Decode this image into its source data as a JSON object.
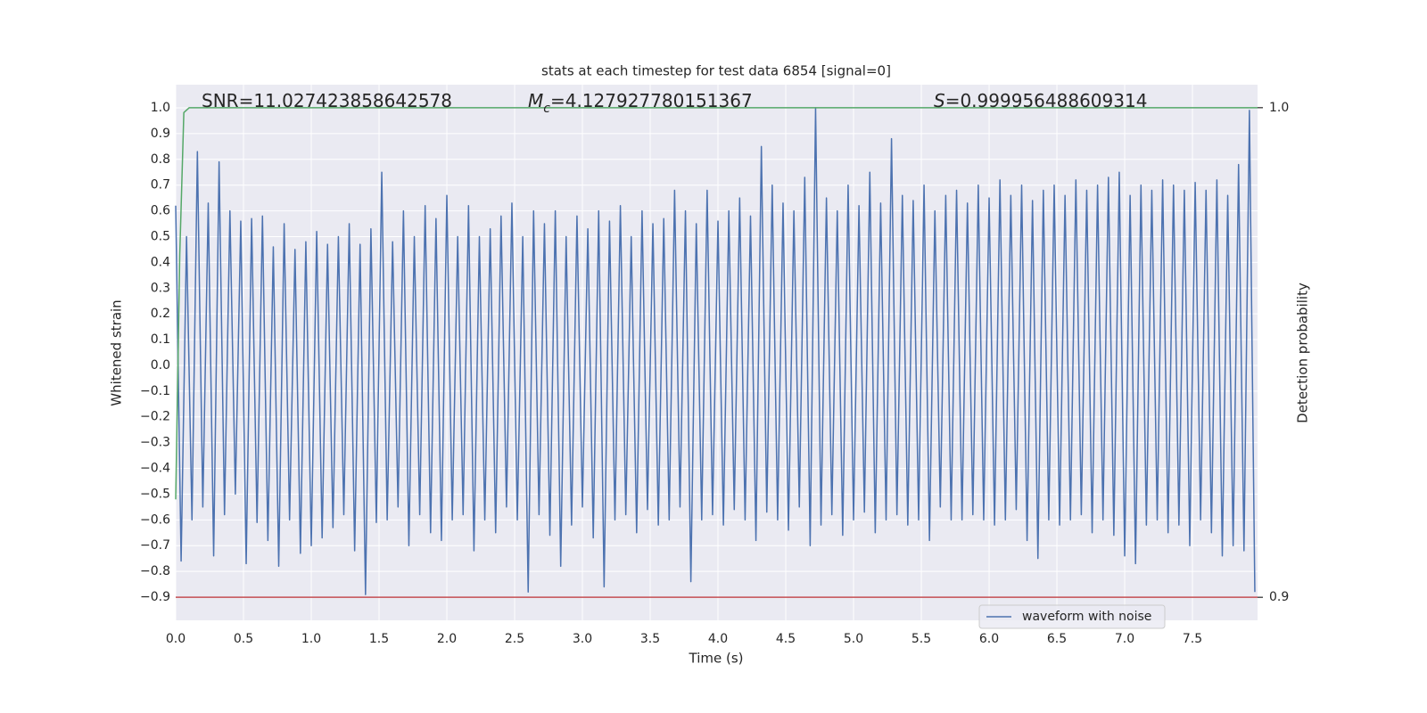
{
  "chart_data": {
    "type": "line",
    "title": "stats at each timestep for test data 6854 [signal=0]",
    "xlabel": "Time (s)",
    "ylabel": "Whitened strain",
    "y2label": "Detection probability",
    "annotations": [
      {
        "symbol": "SNR",
        "text": "=11.027423858642578",
        "italic": false
      },
      {
        "symbol": "M",
        "subscript": "c",
        "text": "=4.127927780151367",
        "italic": true
      },
      {
        "symbol": "S",
        "text": "=0.999956488609314",
        "italic": true
      }
    ],
    "xlim": [
      0,
      7.98
    ],
    "ylim": [
      -0.99,
      1.09
    ],
    "y2lim": [
      0.8953,
      1.0047
    ],
    "xticks": [
      {
        "value": 0,
        "label": "0.0"
      },
      0.5,
      {
        "value": 1,
        "label": "1.0"
      },
      1.5,
      {
        "value": 2,
        "label": "2.0"
      },
      2.5,
      {
        "value": 3,
        "label": "3.0"
      },
      3.5,
      {
        "value": 4,
        "label": "4.0"
      },
      4.5,
      {
        "value": 5,
        "label": "5.0"
      },
      5.5,
      {
        "value": 6,
        "label": "6.0"
      },
      6.5,
      {
        "value": 7,
        "label": "7.0"
      },
      7.5
    ],
    "yticks": [
      {
        "value": -0.9,
        "label": "−0.9"
      },
      {
        "value": -0.8,
        "label": "−0.8"
      },
      {
        "value": -0.7,
        "label": "−0.7"
      },
      {
        "value": -0.6,
        "label": "−0.6"
      },
      {
        "value": -0.5,
        "label": "−0.5"
      },
      {
        "value": -0.4,
        "label": "−0.4"
      },
      {
        "value": -0.3,
        "label": "−0.3"
      },
      {
        "value": -0.2,
        "label": "−0.2"
      },
      {
        "value": -0.1,
        "label": "−0.1"
      },
      {
        "value": 0,
        "label": "0.0"
      },
      0.1,
      0.2,
      0.3,
      0.4,
      0.5,
      0.6,
      0.7,
      0.8,
      0.9,
      {
        "value": 1,
        "label": "1.0"
      }
    ],
    "y2ticks": [
      0.9,
      {
        "value": 1,
        "label": "1.0"
      }
    ],
    "grid": true,
    "legend": "lower right",
    "series": [
      {
        "name": "waveform with noise",
        "color": "#4c72b0",
        "x": [
          0,
          0.04,
          0.08,
          0.12,
          0.16,
          0.2,
          0.24,
          0.28,
          0.32,
          0.36,
          0.4,
          0.44,
          0.48,
          0.52,
          0.56,
          0.6,
          0.64,
          0.68,
          0.72,
          0.76,
          0.8,
          0.84,
          0.88,
          0.92,
          0.96,
          1,
          1.04,
          1.08,
          1.12,
          1.16,
          1.2,
          1.24,
          1.28,
          1.32,
          1.36,
          1.4,
          1.44,
          1.48,
          1.52,
          1.56,
          1.6,
          1.64,
          1.68,
          1.72,
          1.76,
          1.8,
          1.84,
          1.88,
          1.92,
          1.96,
          2,
          2.04,
          2.08,
          2.12,
          2.16,
          2.2,
          2.24,
          2.28,
          2.32,
          2.36,
          2.4,
          2.44,
          2.48,
          2.52,
          2.56,
          2.6,
          2.64,
          2.68,
          2.72,
          2.76,
          2.8,
          2.84,
          2.88,
          2.92,
          2.96,
          3,
          3.04,
          3.08,
          3.12,
          3.16,
          3.2,
          3.24,
          3.28,
          3.32,
          3.36,
          3.4,
          3.44,
          3.48,
          3.52,
          3.56,
          3.6,
          3.64,
          3.68,
          3.72,
          3.76,
          3.8,
          3.84,
          3.88,
          3.92,
          3.96,
          4,
          4.04,
          4.08,
          4.12,
          4.16,
          4.2,
          4.24,
          4.28,
          4.32,
          4.36,
          4.4,
          4.44,
          4.48,
          4.52,
          4.56,
          4.6,
          4.64,
          4.68,
          4.72,
          4.76,
          4.8,
          4.84,
          4.88,
          4.92,
          4.96,
          5,
          5.04,
          5.08,
          5.12,
          5.16,
          5.2,
          5.24,
          5.28,
          5.32,
          5.36,
          5.4,
          5.44,
          5.48,
          5.52,
          5.56,
          5.6,
          5.64,
          5.68,
          5.72,
          5.76,
          5.8,
          5.84,
          5.88,
          5.92,
          5.96,
          6,
          6.04,
          6.08,
          6.12,
          6.16,
          6.2,
          6.24,
          6.28,
          6.32,
          6.36,
          6.4,
          6.44,
          6.48,
          6.52,
          6.56,
          6.6,
          6.64,
          6.68,
          6.72,
          6.76,
          6.8,
          6.84,
          6.88,
          6.92,
          6.96,
          7,
          7.04,
          7.08,
          7.12,
          7.16,
          7.2,
          7.24,
          7.28,
          7.32,
          7.36,
          7.4,
          7.44,
          7.48,
          7.52,
          7.56,
          7.6,
          7.64,
          7.68,
          7.72,
          7.76,
          7.8,
          7.84,
          7.88,
          7.92,
          7.96
        ],
        "values": [
          0.62,
          -0.76,
          0.5,
          -0.6,
          0.83,
          -0.55,
          0.63,
          -0.74,
          0.79,
          -0.58,
          0.6,
          -0.5,
          0.56,
          -0.77,
          0.57,
          -0.61,
          0.58,
          -0.68,
          0.46,
          -0.78,
          0.55,
          -0.6,
          0.45,
          -0.73,
          0.48,
          -0.7,
          0.52,
          -0.67,
          0.47,
          -0.63,
          0.5,
          -0.58,
          0.55,
          -0.72,
          0.47,
          -0.89,
          0.53,
          -0.61,
          0.75,
          -0.6,
          0.48,
          -0.55,
          0.6,
          -0.7,
          0.5,
          -0.58,
          0.62,
          -0.65,
          0.57,
          -0.68,
          0.66,
          -0.6,
          0.5,
          -0.58,
          0.62,
          -0.72,
          0.5,
          -0.6,
          0.53,
          -0.65,
          0.58,
          -0.55,
          0.63,
          -0.6,
          0.5,
          -0.88,
          0.6,
          -0.58,
          0.55,
          -0.66,
          0.6,
          -0.78,
          0.5,
          -0.62,
          0.58,
          -0.55,
          0.53,
          -0.67,
          0.6,
          -0.86,
          0.56,
          -0.6,
          0.62,
          -0.58,
          0.5,
          -0.65,
          0.6,
          -0.56,
          0.55,
          -0.62,
          0.57,
          -0.6,
          0.68,
          -0.55,
          0.6,
          -0.84,
          0.55,
          -0.6,
          0.68,
          -0.58,
          0.56,
          -0.62,
          0.6,
          -0.56,
          0.65,
          -0.6,
          0.58,
          -0.68,
          0.85,
          -0.57,
          0.7,
          -0.6,
          0.63,
          -0.64,
          0.6,
          -0.55,
          0.73,
          -0.7,
          1.0,
          -0.62,
          0.65,
          -0.58,
          0.6,
          -0.66,
          0.7,
          -0.6,
          0.62,
          -0.57,
          0.75,
          -0.65,
          0.63,
          -0.6,
          0.88,
          -0.58,
          0.66,
          -0.62,
          0.64,
          -0.6,
          0.7,
          -0.68,
          0.6,
          -0.55,
          0.66,
          -0.6,
          0.68,
          -0.6,
          0.63,
          -0.58,
          0.7,
          -0.6,
          0.65,
          -0.62,
          0.72,
          -0.6,
          0.66,
          -0.56,
          0.7,
          -0.68,
          0.64,
          -0.75,
          0.68,
          -0.6,
          0.7,
          -0.62,
          0.66,
          -0.6,
          0.72,
          -0.58,
          0.68,
          -0.65,
          0.7,
          -0.6,
          0.73,
          -0.66,
          0.75,
          -0.74,
          0.66,
          -0.77,
          0.7,
          -0.62,
          0.68,
          -0.6,
          0.72,
          -0.65,
          0.7,
          -0.62,
          0.68,
          -0.7,
          0.71,
          -0.6,
          0.68,
          -0.65,
          0.72,
          -0.74,
          0.66,
          -0.7,
          0.78,
          -0.72,
          0.99,
          -0.88
        ]
      },
      {
        "color": "#55a868",
        "axis": "y2",
        "x": [
          0,
          0.03,
          0.06,
          0.1,
          7.98
        ],
        "values": [
          0.92,
          0.97,
          0.999,
          1.0,
          1.0
        ]
      },
      {
        "color": "#c44e52",
        "axis": "y2",
        "x": [
          0,
          7.98
        ],
        "values": [
          0.9,
          0.9
        ]
      }
    ]
  }
}
